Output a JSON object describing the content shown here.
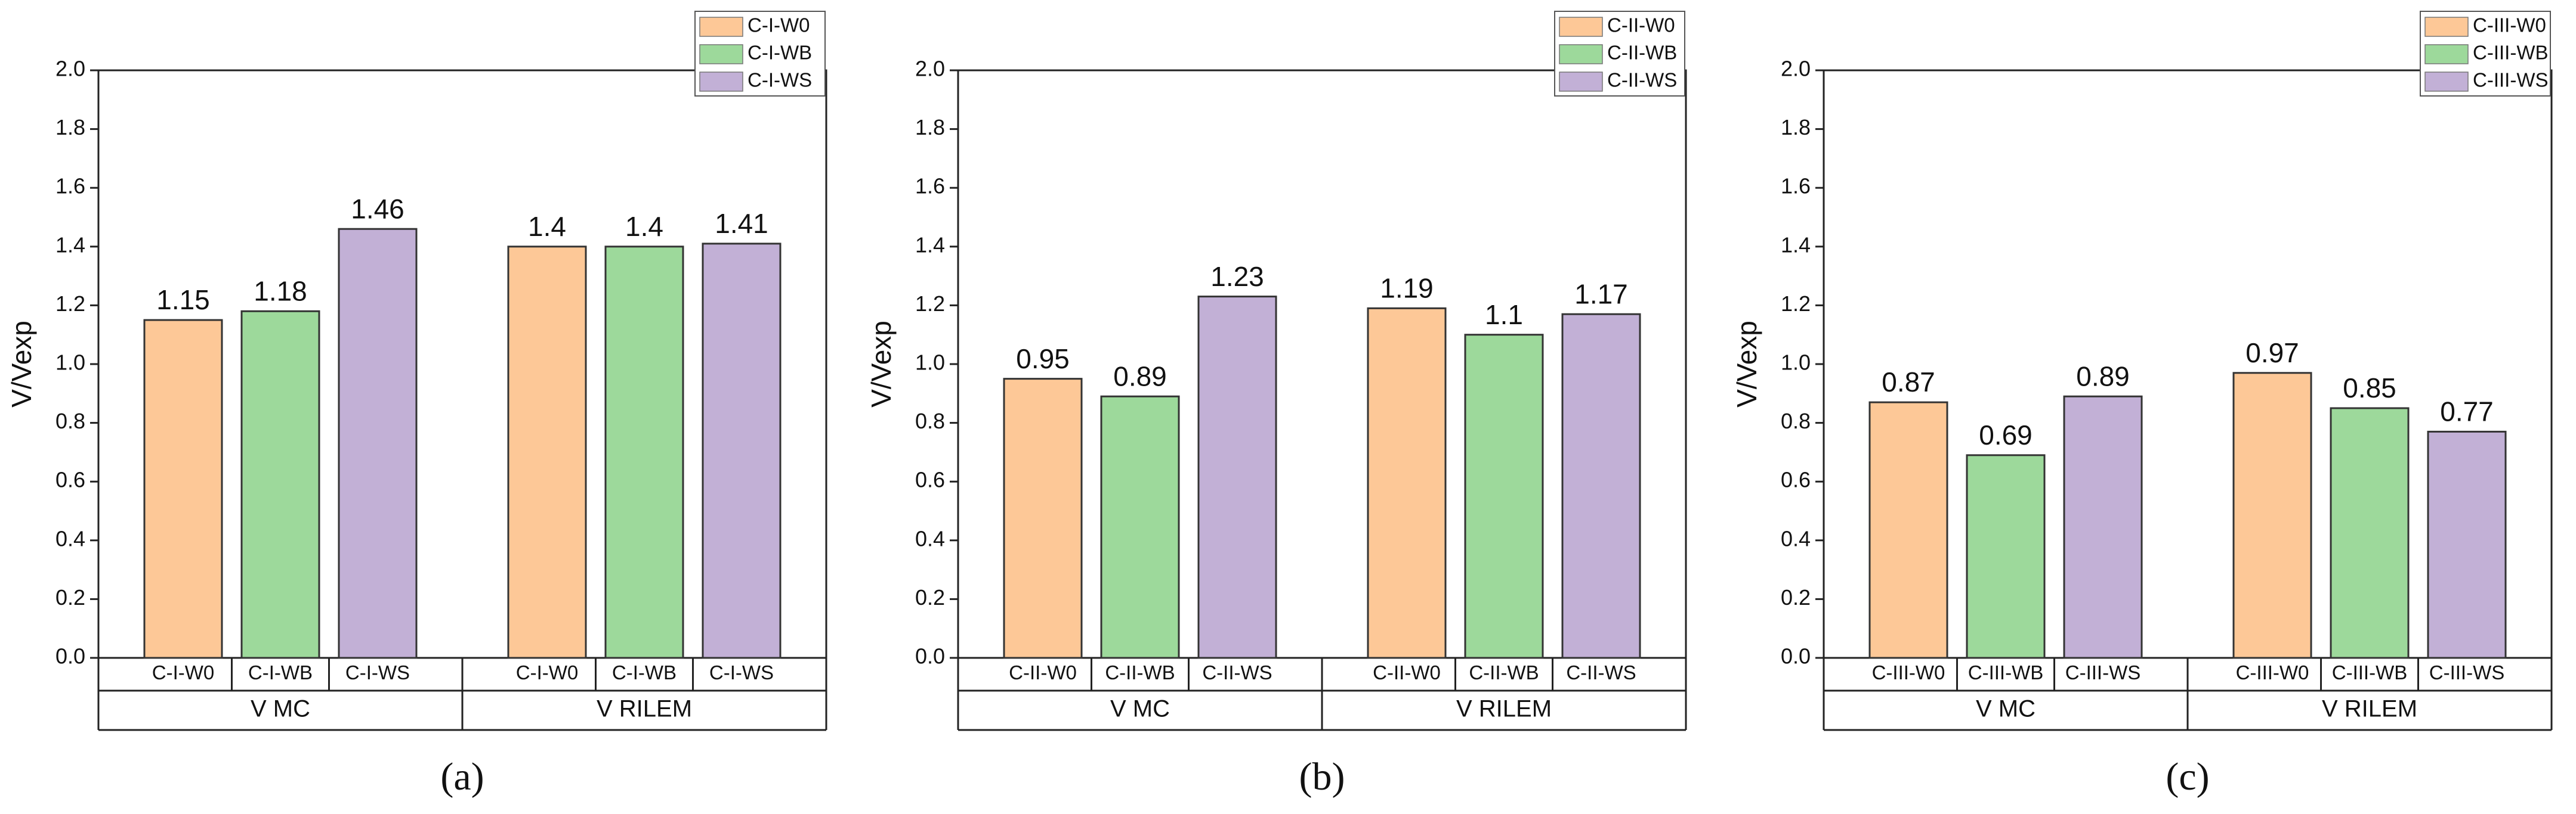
{
  "chart_data": [
    {
      "type": "bar",
      "label": "(a)",
      "ylabel": "V/Vexp",
      "categories": [
        "V MC",
        "V RILEM"
      ],
      "series": [
        {
          "name": "C-I-W0",
          "color": "#fdc897",
          "values": [
            1.15,
            1.4
          ]
        },
        {
          "name": "C-I-WB",
          "color": "#9dd99b",
          "values": [
            1.18,
            1.4
          ]
        },
        {
          "name": "C-I-WS",
          "color": "#c2b0d6",
          "values": [
            1.46,
            1.41
          ]
        }
      ],
      "ylim": [
        0,
        2
      ],
      "yticks": [
        {
          "value": 0,
          "label": "0.0"
        },
        0.2,
        0.4,
        0.6,
        0.8,
        {
          "value": 1,
          "label": "1.0"
        },
        1.2,
        1.4,
        1.6,
        1.8,
        {
          "value": 2,
          "label": "2.0"
        }
      ],
      "legend": "top right"
    },
    {
      "type": "bar",
      "label": "(b)",
      "ylabel": "V/Vexp",
      "categories": [
        "V MC",
        "V RILEM"
      ],
      "series": [
        {
          "name": "C-II-W0",
          "color": "#fdc897",
          "values": [
            0.95,
            1.19
          ]
        },
        {
          "name": "C-II-WB",
          "color": "#9dd99b",
          "values": [
            0.89,
            1.1
          ]
        },
        {
          "name": "C-II-WS",
          "color": "#c2b0d6",
          "values": [
            1.23,
            1.17
          ]
        }
      ],
      "ylim": [
        0,
        2
      ],
      "yticks": [
        {
          "value": 0,
          "label": "0.0"
        },
        0.2,
        0.4,
        0.6,
        0.8,
        {
          "value": 1,
          "label": "1.0"
        },
        1.2,
        1.4,
        1.6,
        1.8,
        {
          "value": 2,
          "label": "2.0"
        }
      ],
      "legend": "top right"
    },
    {
      "type": "bar",
      "label": "(c)",
      "ylabel": "V/Vexp",
      "categories": [
        "V MC",
        "V RILEM"
      ],
      "series": [
        {
          "name": "C-III-W0",
          "color": "#fdc897",
          "values": [
            0.87,
            0.97
          ]
        },
        {
          "name": "C-III-WB",
          "color": "#9dd99b",
          "values": [
            0.69,
            0.85
          ]
        },
        {
          "name": "C-III-WS",
          "color": "#c2b0d6",
          "values": [
            0.89,
            0.77
          ]
        }
      ],
      "ylim": [
        0,
        2
      ],
      "yticks": [
        {
          "value": 0,
          "label": "0.0"
        },
        0.2,
        0.4,
        0.6,
        0.8,
        {
          "value": 1,
          "label": "1.0"
        },
        1.2,
        1.4,
        1.6,
        1.8,
        {
          "value": 2,
          "label": "2.0"
        }
      ],
      "legend": "top right"
    }
  ]
}
